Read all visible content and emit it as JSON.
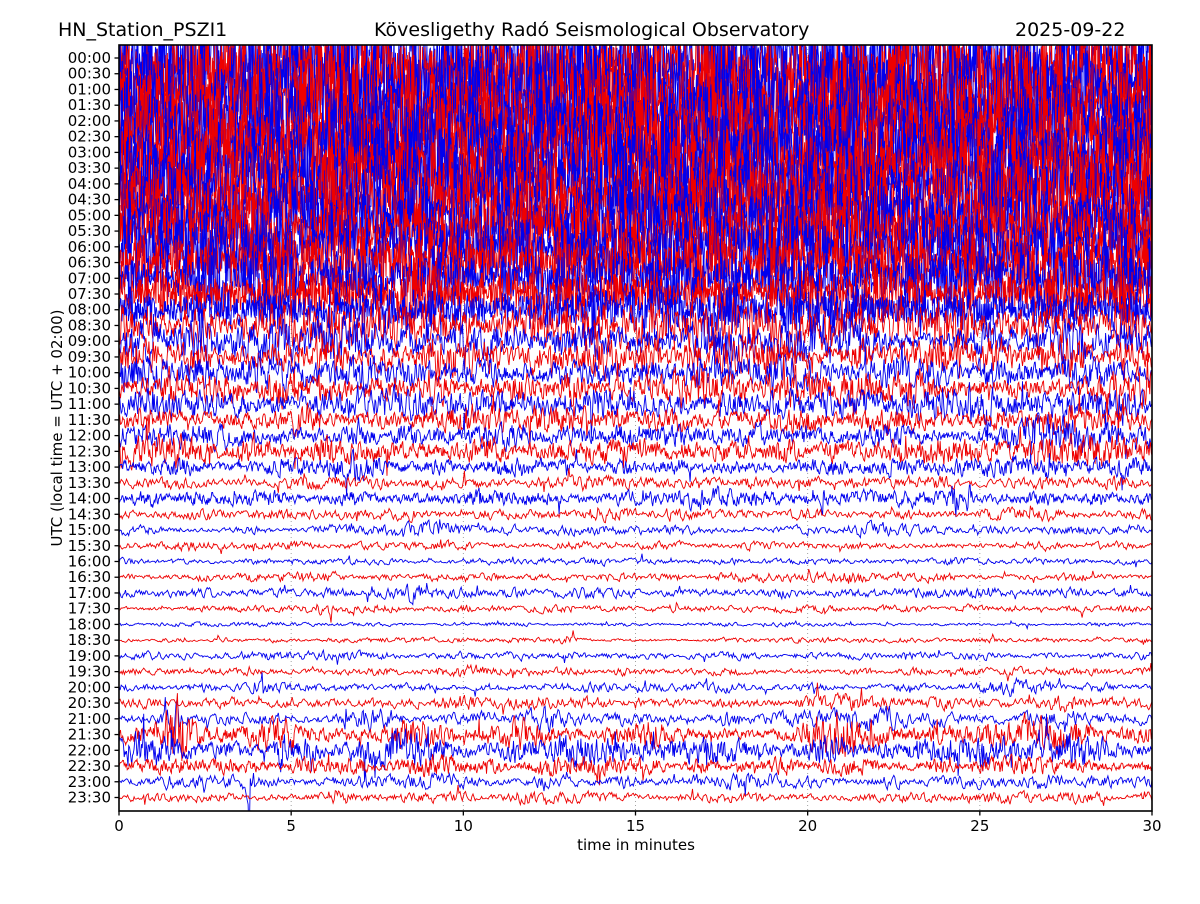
{
  "header": {
    "station": "HN_Station_PSZI1",
    "observatory": "Kövesligethy Radó Seismological Observatory",
    "date": "2025-09-22"
  },
  "chart_data": {
    "type": "line",
    "variant": "helicorder-seismogram",
    "title": "HN_Station_PSZI1 — Kövesligethy Radó Seismological Observatory — 2025-09-22",
    "xlabel": "time in minutes",
    "ylabel": "UTC (local time = UTC + 02:00)",
    "xlim": [
      0,
      30
    ],
    "x_ticks": [
      0,
      5,
      10,
      15,
      20,
      25,
      30
    ],
    "grid_minutes": [
      5,
      10,
      15,
      20,
      25
    ],
    "grid_on": true,
    "row_duration_min": 30,
    "colors": {
      "blue": "#0000ee",
      "red": "#ee0000",
      "grid": "#999999",
      "axis": "#000000",
      "text": "#000000",
      "background": "#ffffff"
    },
    "rows": [
      {
        "label": "00:00",
        "color": "blue",
        "amp": 55,
        "bursts": []
      },
      {
        "label": "00:30",
        "color": "red",
        "amp": 54,
        "bursts": []
      },
      {
        "label": "01:00",
        "color": "blue",
        "amp": 53,
        "bursts": []
      },
      {
        "label": "01:30",
        "color": "red",
        "amp": 52,
        "bursts": []
      },
      {
        "label": "02:00",
        "color": "blue",
        "amp": 50,
        "bursts": []
      },
      {
        "label": "02:30",
        "color": "red",
        "amp": 49,
        "bursts": []
      },
      {
        "label": "03:00",
        "color": "blue",
        "amp": 47,
        "bursts": []
      },
      {
        "label": "03:30",
        "color": "red",
        "amp": 46,
        "bursts": []
      },
      {
        "label": "04:00",
        "color": "blue",
        "amp": 44,
        "bursts": []
      },
      {
        "label": "04:30",
        "color": "red",
        "amp": 43,
        "bursts": []
      },
      {
        "label": "05:00",
        "color": "blue",
        "amp": 41,
        "bursts": []
      },
      {
        "label": "05:30",
        "color": "red",
        "amp": 39,
        "bursts": []
      },
      {
        "label": "06:00",
        "color": "blue",
        "amp": 36,
        "bursts": []
      },
      {
        "label": "06:30",
        "color": "red",
        "amp": 33,
        "bursts": []
      },
      {
        "label": "07:00",
        "color": "blue",
        "amp": 29,
        "bursts": []
      },
      {
        "label": "07:30",
        "color": "red",
        "amp": 27,
        "bursts": []
      },
      {
        "label": "08:00",
        "color": "blue",
        "amp": 21,
        "bursts": []
      },
      {
        "label": "08:30",
        "color": "red",
        "amp": 16,
        "bursts": []
      },
      {
        "label": "09:00",
        "color": "blue",
        "amp": 14,
        "bursts": []
      },
      {
        "label": "09:30",
        "color": "red",
        "amp": 13,
        "bursts": []
      },
      {
        "label": "10:00",
        "color": "blue",
        "amp": 12,
        "bursts": []
      },
      {
        "label": "10:30",
        "color": "red",
        "amp": 11.5,
        "bursts": [
          {
            "t": 29,
            "dur": 0.8,
            "amp": 5
          }
        ]
      },
      {
        "label": "11:00",
        "color": "blue",
        "amp": 10.5,
        "bursts": [
          {
            "t": 24.8,
            "dur": 0.12,
            "amp": 13
          },
          {
            "t": 28,
            "dur": 0.9,
            "amp": 6
          }
        ]
      },
      {
        "label": "11:30",
        "color": "red",
        "amp": 9.5,
        "bursts": [
          {
            "t": 27.5,
            "dur": 0.8,
            "amp": 6
          }
        ]
      },
      {
        "label": "12:00",
        "color": "blue",
        "amp": 7.5,
        "bursts": [
          {
            "t": 27,
            "dur": 1.5,
            "amp": 7
          }
        ]
      },
      {
        "label": "12:30",
        "color": "red",
        "amp": 8.5,
        "bursts": [
          {
            "t": 1.5,
            "dur": 1.2,
            "amp": 5
          },
          {
            "t": 28,
            "dur": 1.2,
            "amp": 7
          }
        ]
      },
      {
        "label": "13:00",
        "color": "blue",
        "amp": 6,
        "bursts": [
          {
            "t": 1.8,
            "dur": 0.5,
            "amp": 4
          },
          {
            "t": 6.8,
            "dur": 0.7,
            "amp": 4
          }
        ]
      },
      {
        "label": "13:30",
        "color": "red",
        "amp": 4.5,
        "bursts": [
          {
            "t": 13.5,
            "dur": 0.7,
            "amp": 3
          },
          {
            "t": 23,
            "dur": 0.8,
            "amp": 3
          },
          {
            "t": 29,
            "dur": 0.6,
            "amp": 4
          }
        ]
      },
      {
        "label": "14:00",
        "color": "blue",
        "amp": 5,
        "bursts": [
          {
            "t": 10.5,
            "dur": 0.6,
            "amp": 5
          },
          {
            "t": 16.8,
            "dur": 0.8,
            "amp": 5
          },
          {
            "t": 20.45,
            "dur": 0.08,
            "amp": 14
          },
          {
            "t": 24.25,
            "dur": 0.12,
            "amp": 16
          },
          {
            "t": 24.7,
            "dur": 0.08,
            "amp": 11
          }
        ]
      },
      {
        "label": "14:30",
        "color": "red",
        "amp": 4,
        "bursts": [
          {
            "t": 2.5,
            "dur": 0.6,
            "amp": 3
          }
        ]
      },
      {
        "label": "15:00",
        "color": "blue",
        "amp": 3.2,
        "bursts": [
          {
            "t": 9,
            "dur": 0.8,
            "amp": 5
          },
          {
            "t": 21.8,
            "dur": 0.7,
            "amp": 4
          }
        ]
      },
      {
        "label": "15:30",
        "color": "red",
        "amp": 2.8,
        "bursts": [
          {
            "t": 2.2,
            "dur": 0.5,
            "amp": 2
          }
        ]
      },
      {
        "label": "16:00",
        "color": "blue",
        "amp": 2.2,
        "bursts": [
          {
            "t": 24.5,
            "dur": 0.6,
            "amp": 2
          }
        ]
      },
      {
        "label": "16:30",
        "color": "red",
        "amp": 3,
        "bursts": [
          {
            "t": 5,
            "dur": 0.6,
            "amp": 3
          },
          {
            "t": 21,
            "dur": 0.6,
            "amp": 3
          }
        ]
      },
      {
        "label": "17:00",
        "color": "blue",
        "amp": 3.2,
        "bursts": [
          {
            "t": 8.6,
            "dur": 0.7,
            "amp": 4
          },
          {
            "t": 25,
            "dur": 0.6,
            "amp": 3
          }
        ]
      },
      {
        "label": "17:30",
        "color": "red",
        "amp": 2.4,
        "bursts": [
          {
            "t": 6,
            "dur": 0.5,
            "amp": 2
          }
        ]
      },
      {
        "label": "18:00",
        "color": "blue",
        "amp": 1.4,
        "bursts": []
      },
      {
        "label": "18:30",
        "color": "red",
        "amp": 1.6,
        "bursts": [
          {
            "t": 13,
            "dur": 0.4,
            "amp": 2
          }
        ]
      },
      {
        "label": "19:00",
        "color": "blue",
        "amp": 2.6,
        "bursts": [
          {
            "t": 5.5,
            "dur": 0.6,
            "amp": 3
          }
        ]
      },
      {
        "label": "19:30",
        "color": "red",
        "amp": 2.6,
        "bursts": [
          {
            "t": 10.5,
            "dur": 0.8,
            "amp": 3
          }
        ]
      },
      {
        "label": "20:00",
        "color": "blue",
        "amp": 3,
        "bursts": [
          {
            "t": 4.2,
            "dur": 0.5,
            "amp": 4
          },
          {
            "t": 26,
            "dur": 0.8,
            "amp": 4
          }
        ]
      },
      {
        "label": "20:30",
        "color": "red",
        "amp": 4,
        "bursts": [
          {
            "t": 10,
            "dur": 0.9,
            "amp": 4
          },
          {
            "t": 21,
            "dur": 0.8,
            "amp": 4
          },
          {
            "t": 27.5,
            "dur": 0.8,
            "amp": 5
          }
        ]
      },
      {
        "label": "21:00",
        "color": "blue",
        "amp": 4.5,
        "bursts": [
          {
            "t": 1.6,
            "dur": 0.3,
            "amp": 12
          },
          {
            "t": 7.5,
            "dur": 0.7,
            "amp": 5
          },
          {
            "t": 12.5,
            "dur": 0.8,
            "amp": 5
          },
          {
            "t": 21.5,
            "dur": 1.4,
            "amp": 7
          },
          {
            "t": 27,
            "dur": 0.8,
            "amp": 5
          }
        ]
      },
      {
        "label": "21:30",
        "color": "red",
        "amp": 6,
        "bursts": [
          {
            "t": 1.7,
            "dur": 0.45,
            "amp": 22
          },
          {
            "t": 4.5,
            "dur": 0.6,
            "amp": 7
          },
          {
            "t": 8.5,
            "dur": 0.8,
            "amp": 7
          },
          {
            "t": 12,
            "dur": 0.8,
            "amp": 7
          },
          {
            "t": 15.5,
            "dur": 0.7,
            "amp": 5
          },
          {
            "t": 20.8,
            "dur": 1.2,
            "amp": 11
          },
          {
            "t": 26.8,
            "dur": 1.1,
            "amp": 11
          }
        ]
      },
      {
        "label": "22:00",
        "color": "blue",
        "amp": 7.5,
        "bursts": [
          {
            "t": 0.7,
            "dur": 0.5,
            "amp": 11
          },
          {
            "t": 4.7,
            "dur": 0.15,
            "amp": 13
          },
          {
            "t": 8,
            "dur": 0.8,
            "amp": 7
          },
          {
            "t": 13,
            "dur": 0.8,
            "amp": 5
          },
          {
            "t": 17.5,
            "dur": 0.8,
            "amp": 7
          },
          {
            "t": 20.3,
            "dur": 0.2,
            "amp": 11
          },
          {
            "t": 24.8,
            "dur": 1.2,
            "amp": 8
          },
          {
            "t": 27.5,
            "dur": 0.8,
            "amp": 6
          }
        ]
      },
      {
        "label": "22:30",
        "color": "red",
        "amp": 5,
        "bursts": [
          {
            "t": 2,
            "dur": 0.7,
            "amp": 4
          },
          {
            "t": 9.5,
            "dur": 0.8,
            "amp": 4
          },
          {
            "t": 14,
            "dur": 0.7,
            "amp": 3
          },
          {
            "t": 21,
            "dur": 0.8,
            "amp": 3
          },
          {
            "t": 26,
            "dur": 0.8,
            "amp": 3
          }
        ]
      },
      {
        "label": "23:00",
        "color": "blue",
        "amp": 4.5,
        "bursts": [
          {
            "t": 3.8,
            "dur": 0.15,
            "amp": 13
          },
          {
            "t": 9.5,
            "dur": 0.7,
            "amp": 4
          },
          {
            "t": 18.5,
            "dur": 0.8,
            "amp": 4
          },
          {
            "t": 27,
            "dur": 0.7,
            "amp": 3
          }
        ]
      },
      {
        "label": "23:30",
        "color": "red",
        "amp": 3.5,
        "bursts": [
          {
            "t": 6.3,
            "dur": 0.25,
            "amp": 7
          },
          {
            "t": 12,
            "dur": 0.6,
            "amp": 3
          },
          {
            "t": 25.5,
            "dur": 0.6,
            "amp": 3
          }
        ]
      }
    ]
  }
}
